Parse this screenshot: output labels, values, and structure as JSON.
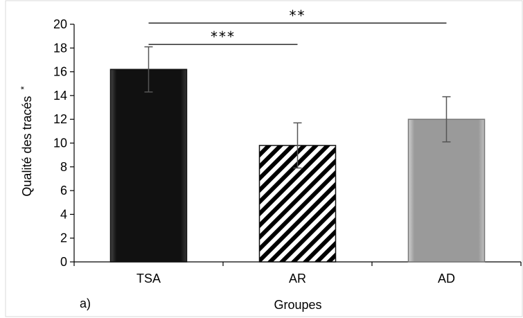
{
  "chart_data": {
    "type": "bar",
    "panel_label": "a)",
    "xlabel": "Groupes",
    "ylabel": "Qualité des tracés",
    "ylabel_suffix": "*",
    "ylim": [
      0,
      20
    ],
    "yticks": [
      "0",
      "2",
      "4",
      "6",
      "8",
      "10",
      "12",
      "14",
      "16",
      "18",
      "20"
    ],
    "categories": [
      "TSA",
      "AR",
      "AD"
    ],
    "values": [
      16.2,
      9.8,
      12.0
    ],
    "error": [
      1.9,
      1.9,
      1.9
    ],
    "bar_styles": [
      "solid-black",
      "diagonal-stripes",
      "solid-gray"
    ],
    "grid": false,
    "significance": [
      {
        "from": "TSA",
        "to": "AR",
        "label": "***",
        "y": 18.3
      },
      {
        "from": "TSA",
        "to": "AD",
        "label": "**",
        "y": 20.1
      }
    ]
  },
  "colors": {
    "bar_black": "#111111",
    "bar_gray": "#9a9a9a",
    "stripe": "#000000",
    "frame": "#d9d9d9"
  }
}
